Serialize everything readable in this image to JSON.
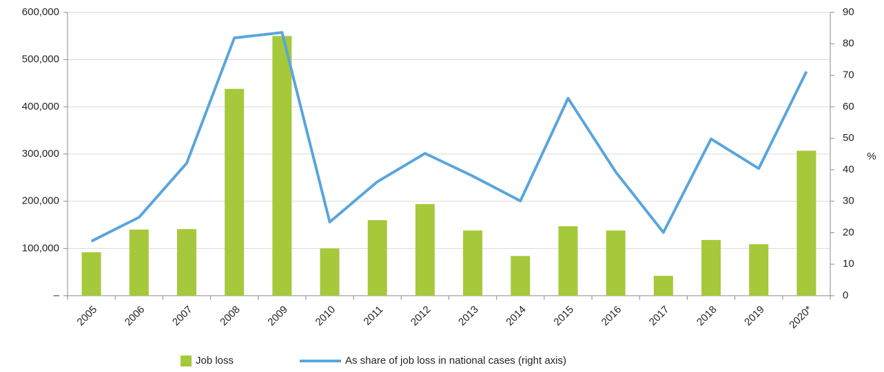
{
  "chart_data": {
    "type": "bar",
    "categories": [
      "2005",
      "2006",
      "2007",
      "2008",
      "2009",
      "2010",
      "2011",
      "2012",
      "2013",
      "2014",
      "2015",
      "2016",
      "2017",
      "2018",
      "2019",
      "2020*"
    ],
    "series": [
      {
        "name": "Job loss",
        "type": "bar",
        "color": "#a5c93a",
        "axis": "y",
        "values": [
          92000,
          140000,
          141000,
          438000,
          550000,
          100000,
          160000,
          194000,
          138000,
          84000,
          147000,
          138000,
          42000,
          118000,
          109000,
          307000
        ]
      },
      {
        "name": "As share of job loss in national cases (right axis)",
        "type": "line",
        "color": "#5aa5dc",
        "axis": "y2",
        "values": [
          17.3,
          24.9,
          42.1,
          81.9,
          83.6,
          23.4,
          36.2,
          45.2,
          38,
          30.1,
          62.7,
          39.3,
          20.1,
          49.8,
          40.4,
          71.2
        ]
      }
    ],
    "ylim": [
      0,
      600000
    ],
    "yticks": [
      {
        "value": 0,
        "label": "–"
      },
      {
        "value": 100000,
        "label": "100,000"
      },
      {
        "value": 200000,
        "label": "200,000"
      },
      {
        "value": 300000,
        "label": "300,000"
      },
      {
        "value": 400000,
        "label": "400,000"
      },
      {
        "value": 500000,
        "label": "500,000"
      },
      {
        "value": 600000,
        "label": "600,000"
      }
    ],
    "y2lim": [
      0,
      90
    ],
    "y2ticks": [
      0,
      10,
      20,
      30,
      40,
      50,
      60,
      70,
      80,
      90
    ],
    "y2label": "%",
    "grid": true,
    "legend": "bottom"
  }
}
